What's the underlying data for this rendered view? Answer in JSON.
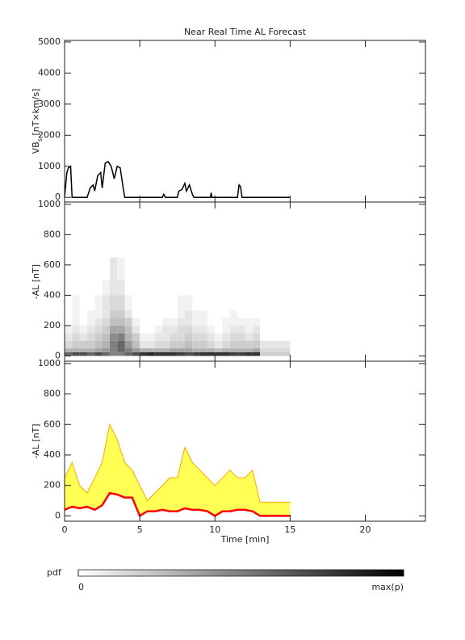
{
  "chart_data": [
    {
      "type": "line",
      "title": "Near Real Time AL Forecast",
      "ylabel_parts": [
        "VB",
        "s",
        " [nT×km/s]"
      ],
      "x": [
        0,
        0.15,
        0.25,
        0.4,
        0.5,
        1.5,
        1.7,
        1.9,
        2.0,
        2.2,
        2.4,
        2.5,
        2.7,
        2.9,
        3.1,
        3.3,
        3.5,
        3.7,
        3.9,
        4.0,
        6.5,
        6.6,
        6.7,
        7.5,
        7.6,
        7.8,
        8.0,
        8.1,
        8.3,
        8.5,
        8.6,
        9.7,
        9.75,
        9.8,
        11.5,
        11.6,
        11.7,
        11.8,
        15
      ],
      "values": [
        0,
        800,
        950,
        1000,
        0,
        0,
        300,
        400,
        200,
        700,
        800,
        300,
        1100,
        1150,
        1000,
        600,
        1000,
        950,
        300,
        0,
        0,
        100,
        0,
        0,
        200,
        250,
        450,
        200,
        400,
        100,
        0,
        0,
        150,
        0,
        0,
        400,
        350,
        0,
        0
      ],
      "color": "#000000",
      "xlim": [
        0,
        24
      ],
      "xticks": [
        0,
        5,
        10,
        15,
        20
      ],
      "ylim": [
        -150,
        5050
      ],
      "yticks": [
        0,
        1000,
        2000,
        3000,
        4000,
        5000
      ]
    },
    {
      "type": "heatmap",
      "ylabel": "-AL [nT]",
      "xbins": [
        0,
        0.5,
        1,
        1.5,
        2,
        2.5,
        3,
        3.5,
        4,
        4.5,
        5,
        5.5,
        6,
        6.5,
        7,
        7.5,
        8,
        8.5,
        9,
        9.5,
        10,
        10.5,
        11,
        11.5,
        12,
        12.5,
        13,
        13.5,
        14,
        14.5,
        15
      ],
      "ybins": [
        0,
        25,
        50,
        100,
        150,
        200,
        250,
        300,
        400,
        500,
        650
      ],
      "z": [
        [
          0.6,
          0.3,
          0.15,
          0.1,
          0.05,
          0,
          0,
          0,
          0,
          0
        ],
        [
          0.7,
          0.3,
          0.2,
          0.15,
          0.1,
          0.05,
          0.05,
          0.05,
          0,
          0
        ],
        [
          0.7,
          0.3,
          0.2,
          0.1,
          0.05,
          0,
          0,
          0,
          0,
          0
        ],
        [
          0.6,
          0.3,
          0.2,
          0.15,
          0.1,
          0.05,
          0.05,
          0,
          0,
          0
        ],
        [
          0.7,
          0.35,
          0.25,
          0.2,
          0.15,
          0.1,
          0.05,
          0.05,
          0,
          0
        ],
        [
          0.6,
          0.4,
          0.3,
          0.25,
          0.2,
          0.15,
          0.1,
          0.1,
          0.05,
          0
        ],
        [
          0.5,
          0.5,
          0.5,
          0.45,
          0.35,
          0.25,
          0.2,
          0.15,
          0.1,
          0.1
        ],
        [
          0.5,
          0.6,
          0.6,
          0.5,
          0.35,
          0.25,
          0.2,
          0.15,
          0.1,
          0.05
        ],
        [
          0.6,
          0.5,
          0.4,
          0.3,
          0.25,
          0.2,
          0.1,
          0.05,
          0,
          0
        ],
        [
          0.7,
          0.4,
          0.25,
          0.2,
          0.1,
          0.05,
          0,
          0,
          0,
          0
        ],
        [
          0.8,
          0.3,
          0.1,
          0.05,
          0,
          0,
          0,
          0,
          0,
          0
        ],
        [
          0.85,
          0.3,
          0.1,
          0.05,
          0,
          0,
          0,
          0,
          0,
          0
        ],
        [
          0.8,
          0.3,
          0.15,
          0.1,
          0.05,
          0,
          0,
          0,
          0,
          0
        ],
        [
          0.8,
          0.3,
          0.15,
          0.1,
          0.1,
          0.05,
          0,
          0,
          0,
          0
        ],
        [
          0.8,
          0.35,
          0.2,
          0.15,
          0.1,
          0.05,
          0,
          0,
          0,
          0
        ],
        [
          0.75,
          0.35,
          0.2,
          0.15,
          0.15,
          0.1,
          0.05,
          0.05,
          0,
          0
        ],
        [
          0.7,
          0.35,
          0.25,
          0.2,
          0.15,
          0.1,
          0.1,
          0.05,
          0,
          0
        ],
        [
          0.75,
          0.3,
          0.2,
          0.15,
          0.1,
          0.05,
          0.05,
          0,
          0,
          0
        ],
        [
          0.8,
          0.3,
          0.2,
          0.15,
          0.1,
          0.05,
          0.05,
          0,
          0,
          0
        ],
        [
          0.8,
          0.3,
          0.15,
          0.1,
          0.05,
          0,
          0,
          0,
          0,
          0
        ],
        [
          0.8,
          0.25,
          0.1,
          0.05,
          0,
          0,
          0,
          0,
          0,
          0
        ],
        [
          0.8,
          0.3,
          0.15,
          0.1,
          0.05,
          0.05,
          0,
          0,
          0,
          0
        ],
        [
          0.75,
          0.3,
          0.2,
          0.15,
          0.1,
          0.05,
          0.05,
          0,
          0,
          0
        ],
        [
          0.75,
          0.3,
          0.2,
          0.15,
          0.1,
          0.05,
          0,
          0,
          0,
          0
        ],
        [
          0.8,
          0.3,
          0.2,
          0.1,
          0.05,
          0.05,
          0,
          0,
          0,
          0
        ],
        [
          0.8,
          0.35,
          0.2,
          0.15,
          0.1,
          0.05,
          0,
          0,
          0,
          0
        ],
        [
          0.2,
          0.15,
          0.1,
          0,
          0,
          0,
          0,
          0,
          0,
          0
        ],
        [
          0.2,
          0.15,
          0.1,
          0,
          0,
          0,
          0,
          0,
          0,
          0
        ],
        [
          0.2,
          0.15,
          0.1,
          0,
          0,
          0,
          0,
          0,
          0,
          0
        ],
        [
          0.2,
          0.15,
          0.1,
          0,
          0,
          0,
          0,
          0,
          0,
          0
        ]
      ],
      "xlim": [
        0,
        24
      ],
      "xticks": [
        0,
        5,
        10,
        15,
        20
      ],
      "ylim": [
        -35,
        1015
      ],
      "yticks": [
        0,
        200,
        400,
        600,
        800,
        1000
      ],
      "colorbar": {
        "label": "pdf",
        "ticks": [
          0,
          {
            "value": 1,
            "label": "max(p)"
          }
        ]
      }
    },
    {
      "type": "band",
      "ylabel": "-AL [nT]",
      "xlabel": "Time [min]",
      "x": [
        0,
        0.5,
        1,
        1.5,
        2,
        2.5,
        3,
        3.5,
        4,
        4.5,
        5,
        5.5,
        6,
        6.5,
        7,
        7.5,
        8,
        8.5,
        9,
        9.5,
        10,
        10.5,
        11,
        11.5,
        12,
        12.5,
        13,
        13.5,
        14,
        14.5,
        15
      ],
      "series": [
        {
          "color": "#ff0000",
          "values": [
            40,
            60,
            50,
            60,
            40,
            70,
            150,
            140,
            120,
            120,
            0,
            30,
            30,
            40,
            30,
            30,
            50,
            40,
            40,
            30,
            0,
            30,
            30,
            40,
            40,
            30,
            0,
            0,
            0,
            0,
            0
          ]
        },
        {
          "color": "#ffa500",
          "values": [
            250,
            350,
            200,
            150,
            250,
            350,
            600,
            500,
            350,
            300,
            200,
            100,
            150,
            200,
            250,
            250,
            450,
            350,
            300,
            250,
            200,
            250,
            300,
            250,
            250,
            300,
            90,
            90,
            90,
            90,
            90
          ]
        }
      ],
      "fill_color": "#ffff55",
      "xlim": [
        0,
        24
      ],
      "xticks": [
        0,
        5,
        10,
        15,
        20
      ],
      "ylim": [
        -35,
        1015
      ],
      "yticks": [
        0,
        200,
        400,
        600,
        800,
        1000
      ]
    }
  ]
}
